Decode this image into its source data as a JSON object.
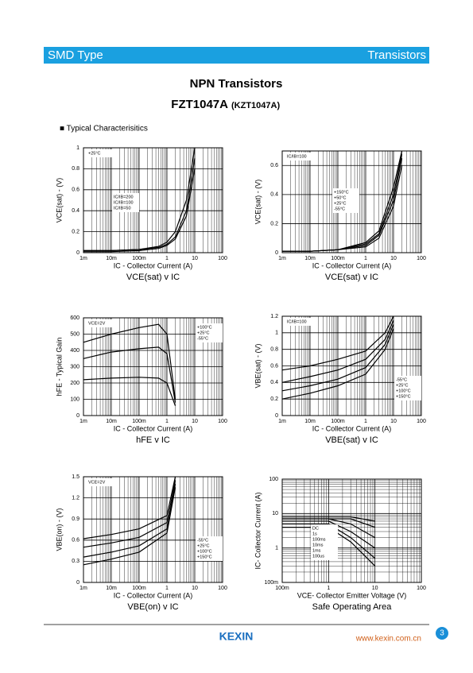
{
  "page": {
    "header_left": "SMD Type",
    "header_right": "Transistors",
    "title": "NPN  Transistors",
    "part": "FZT1047A",
    "part_alt": "(KZT1047A)",
    "section": "■  Typical  Characterisitics",
    "logo": "KEXIN",
    "url": "www.kexin.com.cn",
    "page_number": "3"
  },
  "chart_data": [
    {
      "type": "line",
      "title": "VCE(sat) v IC",
      "xlabel": "IC - Collector Current (A)",
      "ylabel": "VCE(sat) - (V)",
      "annotation": "+25°C",
      "legend": "center-left",
      "grid": true,
      "xlog": true,
      "ylog": false,
      "xlim": [
        0.001,
        100
      ],
      "xticks": [
        {
          "value": 0.001,
          "label": "1m"
        },
        {
          "value": 0.01,
          "label": "10m"
        },
        {
          "value": 0.1,
          "label": "100m"
        },
        1,
        10,
        100
      ],
      "ylim": [
        0,
        1
      ],
      "yticks": [
        0,
        0.2,
        0.4,
        0.6,
        0.8,
        1
      ],
      "x": [
        0.001,
        0.01,
        0.1,
        0.5,
        1,
        2,
        5,
        10
      ],
      "series": [
        {
          "name": "IC/IB=200",
          "color": "#000000",
          "values": [
            0.02,
            0.02,
            0.03,
            0.06,
            0.1,
            0.2,
            0.5,
            1.0
          ]
        },
        {
          "name": "IC/IB=100",
          "color": "#000000",
          "values": [
            0.02,
            0.02,
            0.03,
            0.05,
            0.08,
            0.15,
            0.4,
            0.9
          ]
        },
        {
          "name": "IC/IB=50",
          "color": "#000000",
          "values": [
            0.01,
            0.01,
            0.02,
            0.04,
            0.07,
            0.13,
            0.35,
            0.8
          ]
        }
      ]
    },
    {
      "type": "line",
      "title": "VCE(sat) v IC",
      "xlabel": "IC - Collector Current (A)",
      "ylabel": "VCE(sat) - (V)",
      "annotation": "IC/IB=100",
      "legend": "center",
      "grid": true,
      "xlog": true,
      "ylog": false,
      "xlim": [
        0.001,
        100
      ],
      "xticks": [
        {
          "value": 0.001,
          "label": "1m"
        },
        {
          "value": 0.01,
          "label": "10m"
        },
        {
          "value": 0.1,
          "label": "100m"
        },
        1,
        10,
        100
      ],
      "ylim": [
        0,
        0.7
      ],
      "yticks": [
        0,
        0.2,
        0.4,
        0.6
      ],
      "x": [
        0.001,
        0.01,
        0.1,
        1,
        3,
        10,
        20
      ],
      "series": [
        {
          "name": "+150°C",
          "color": "#000000",
          "values": [
            0.01,
            0.01,
            0.02,
            0.07,
            0.15,
            0.45,
            0.7
          ]
        },
        {
          "name": "+50°C",
          "color": "#000000",
          "values": [
            0.01,
            0.01,
            0.02,
            0.06,
            0.13,
            0.4,
            0.68
          ]
        },
        {
          "name": "+25°C",
          "color": "#000000",
          "values": [
            0.01,
            0.01,
            0.02,
            0.05,
            0.12,
            0.36,
            0.65
          ]
        },
        {
          "name": "-55°C",
          "color": "#000000",
          "values": [
            0.01,
            0.01,
            0.02,
            0.04,
            0.1,
            0.32,
            0.6
          ]
        }
      ]
    },
    {
      "type": "line",
      "title": "hFE v IC",
      "xlabel": "IC - Collector Current (A)",
      "ylabel": "hFE - Typical Gain",
      "annotation": "VCE=2V",
      "legend": "top-right",
      "grid": true,
      "xlog": true,
      "ylog": false,
      "xlim": [
        0.001,
        100
      ],
      "xticks": [
        {
          "value": 0.001,
          "label": "1m"
        },
        {
          "value": 0.01,
          "label": "10m"
        },
        {
          "value": 0.1,
          "label": "100m"
        },
        1,
        10,
        100
      ],
      "ylim": [
        0,
        600
      ],
      "yticks": [
        0,
        100,
        200,
        300,
        400,
        500,
        600
      ],
      "x": [
        0.001,
        0.01,
        0.1,
        0.5,
        1,
        2
      ],
      "series": [
        {
          "name": "+100°C",
          "color": "#000000",
          "values": [
            450,
            500,
            540,
            560,
            500,
            100
          ]
        },
        {
          "name": "+25°C",
          "color": "#000000",
          "values": [
            350,
            390,
            410,
            420,
            380,
            80
          ]
        },
        {
          "name": "-55°C",
          "color": "#000000",
          "values": [
            220,
            230,
            235,
            230,
            200,
            60
          ]
        }
      ]
    },
    {
      "type": "line",
      "title": "VBE(sat) v IC",
      "xlabel": "IC - Collector Current (A)",
      "ylabel": "VBE(sat) - (V)",
      "annotation": "IC/IB=100",
      "legend": "bottom-right",
      "grid": true,
      "xlog": true,
      "ylog": false,
      "xlim": [
        0.001,
        100
      ],
      "xticks": [
        {
          "value": 0.001,
          "label": "1m"
        },
        {
          "value": 0.01,
          "label": "10m"
        },
        {
          "value": 0.1,
          "label": "100m"
        },
        1,
        10,
        100
      ],
      "ylim": [
        0,
        1.2
      ],
      "yticks": [
        0,
        0.2,
        0.4,
        0.6,
        0.8,
        1,
        1.2
      ],
      "x": [
        0.001,
        0.01,
        0.1,
        1,
        5,
        10
      ],
      "series": [
        {
          "name": "-55°C",
          "color": "#000000",
          "values": [
            0.55,
            0.6,
            0.68,
            0.78,
            1.0,
            1.2
          ]
        },
        {
          "name": "+25°C",
          "color": "#000000",
          "values": [
            0.4,
            0.47,
            0.55,
            0.68,
            0.92,
            1.15
          ]
        },
        {
          "name": "+100°C",
          "color": "#000000",
          "values": [
            0.3,
            0.36,
            0.44,
            0.58,
            0.86,
            1.1
          ]
        },
        {
          "name": "+150°C",
          "color": "#000000",
          "values": [
            0.2,
            0.27,
            0.36,
            0.5,
            0.8,
            1.05
          ]
        }
      ]
    },
    {
      "type": "line",
      "title": "VBE(on) v IC",
      "xlabel": "IC - Collector Current (A)",
      "ylabel": "VBE(on) - (V)",
      "annotation": "VCE=2V",
      "legend": "bottom-right",
      "grid": true,
      "xlog": true,
      "ylog": false,
      "xlim": [
        0.001,
        100
      ],
      "xticks": [
        {
          "value": 0.001,
          "label": "1m"
        },
        {
          "value": 0.01,
          "label": "10m"
        },
        {
          "value": 0.1,
          "label": "100m"
        },
        1,
        10,
        100
      ],
      "ylim": [
        0,
        1.5
      ],
      "yticks": [
        0,
        0.3,
        0.6,
        0.9,
        1.2,
        1.5
      ],
      "x": [
        0.001,
        0.01,
        0.1,
        1,
        2
      ],
      "series": [
        {
          "name": "-55°C",
          "color": "#000000",
          "values": [
            0.62,
            0.68,
            0.76,
            0.95,
            1.5
          ]
        },
        {
          "name": "+25°C",
          "color": "#000000",
          "values": [
            0.5,
            0.56,
            0.64,
            0.85,
            1.45
          ]
        },
        {
          "name": "+100°C",
          "color": "#000000",
          "values": [
            0.36,
            0.43,
            0.52,
            0.76,
            1.4
          ]
        },
        {
          "name": "+150°C",
          "color": "#000000",
          "values": [
            0.25,
            0.33,
            0.43,
            0.7,
            1.35
          ]
        }
      ]
    },
    {
      "type": "line",
      "title": "Safe Operating Area",
      "xlabel": "VCE- Collector Emitter Voltage (V)",
      "ylabel": "IC- Collector Current (A)",
      "legend": "center-left",
      "grid": true,
      "xlog": true,
      "ylog": true,
      "xlim": [
        0.1,
        100
      ],
      "xticks": [
        {
          "value": 0.1,
          "label": "100m"
        },
        1,
        10,
        100
      ],
      "ylim": [
        0.1,
        100
      ],
      "yticks": [
        {
          "value": 0.1,
          "label": "100m"
        },
        1,
        10,
        100
      ],
      "x": [
        0.1,
        1,
        3,
        10
      ],
      "series": [
        {
          "name": "DC",
          "color": "#000000",
          "values": [
            4,
            4,
            1.5,
            0.3
          ]
        },
        {
          "name": "1s",
          "color": "#000000",
          "values": [
            5,
            5,
            2,
            0.5
          ]
        },
        {
          "name": "100ms",
          "color": "#000000",
          "values": [
            6,
            6,
            3,
            1
          ]
        },
        {
          "name": "10ms",
          "color": "#000000",
          "values": [
            7,
            7,
            5,
            2
          ]
        },
        {
          "name": "1ms",
          "color": "#000000",
          "values": [
            7,
            7,
            7,
            4
          ]
        },
        {
          "name": "100us",
          "color": "#000000",
          "values": [
            8,
            8,
            8,
            6
          ]
        }
      ]
    }
  ]
}
